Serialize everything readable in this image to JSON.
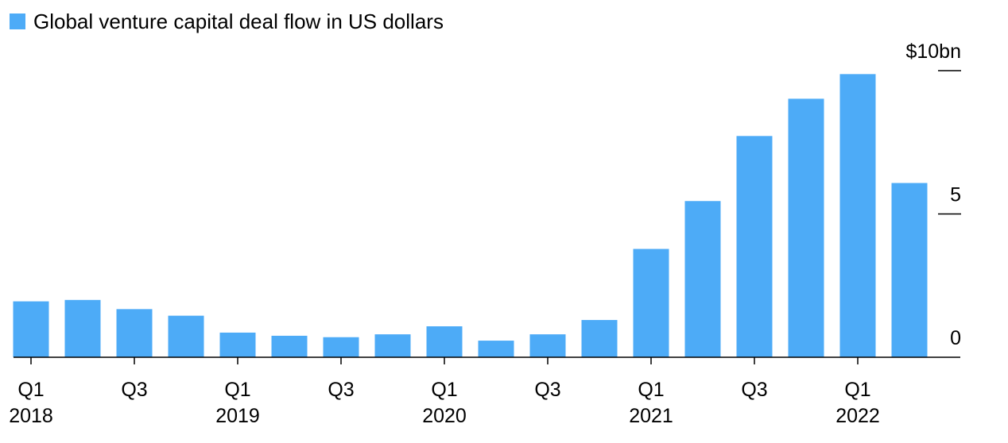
{
  "chart_data": {
    "type": "bar",
    "legend": {
      "label": "Global venture capital deal flow in US dollars",
      "placement": "top-left"
    },
    "categories": [
      "Q1 2018",
      "Q2 2018",
      "Q3 2018",
      "Q4 2018",
      "Q1 2019",
      "Q2 2019",
      "Q3 2019",
      "Q4 2019",
      "Q1 2020",
      "Q2 2020",
      "Q3 2020",
      "Q4 2020",
      "Q1 2021",
      "Q2 2021",
      "Q3 2021",
      "Q4 2021",
      "Q1 2022",
      "Q2 2022"
    ],
    "x_tick_labels": [
      {
        "index": 0,
        "quarter": "Q1",
        "year": "2018"
      },
      {
        "index": 2,
        "quarter": "Q3",
        "year": ""
      },
      {
        "index": 4,
        "quarter": "Q1",
        "year": "2019"
      },
      {
        "index": 6,
        "quarter": "Q3",
        "year": ""
      },
      {
        "index": 8,
        "quarter": "Q1",
        "year": "2020"
      },
      {
        "index": 10,
        "quarter": "Q3",
        "year": ""
      },
      {
        "index": 12,
        "quarter": "Q1",
        "year": "2021"
      },
      {
        "index": 14,
        "quarter": "Q3",
        "year": ""
      },
      {
        "index": 16,
        "quarter": "Q1",
        "year": "2022"
      }
    ],
    "series": [
      {
        "values": [
          1.95,
          2.0,
          1.68,
          1.45,
          0.86,
          0.75,
          0.7,
          0.8,
          1.08,
          0.58,
          0.8,
          1.3,
          3.78,
          5.45,
          7.72,
          9.02,
          9.88,
          6.08
        ]
      }
    ],
    "y_ticks": [
      {
        "value": 0,
        "label": "0"
      },
      {
        "value": 5,
        "label": "5"
      },
      {
        "value": 10,
        "label": "$10bn"
      }
    ],
    "ylim": [
      0,
      10
    ],
    "grid": false,
    "bar_color": "#4dabf7"
  }
}
